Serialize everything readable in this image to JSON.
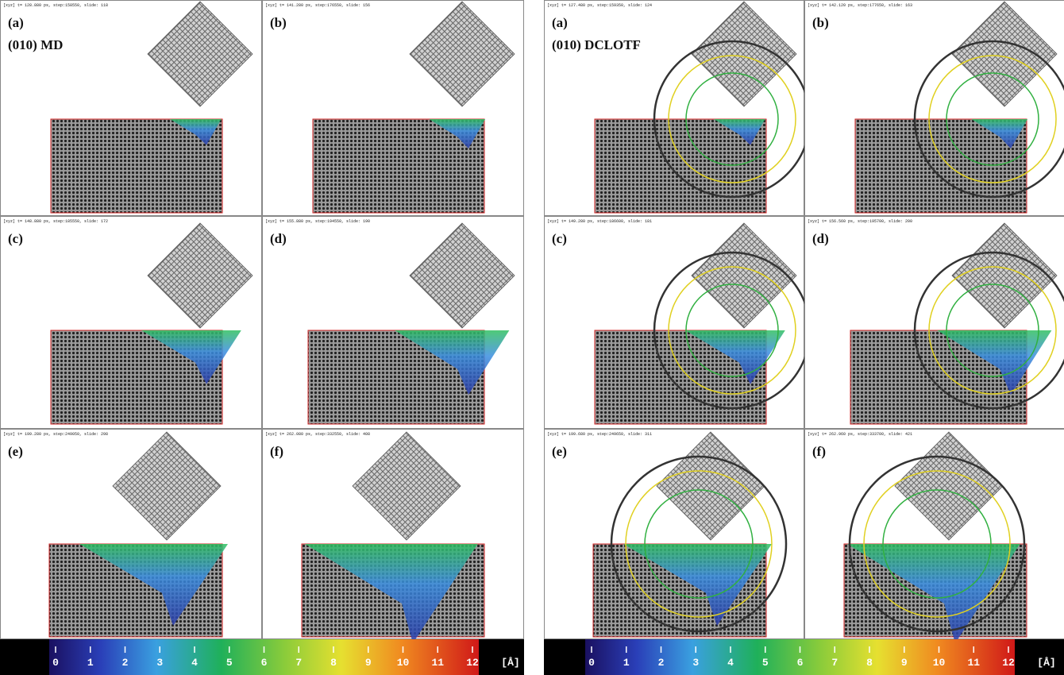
{
  "left": {
    "heading": "(010) MD",
    "panels": [
      {
        "label": "(a)",
        "info": "[xyz] t= 128.880 ps, step:158550, slide: 118"
      },
      {
        "label": "(b)",
        "info": "[xyz] t= 141.280 ps, step:176550, slide: 156"
      },
      {
        "label": "(c)",
        "info": "[xyz] t= 148.880 ps, step:185550, slide: 172"
      },
      {
        "label": "(d)",
        "info": "[xyz] t= 155.880 ps, step:194550, slide: 190"
      },
      {
        "label": "(e)",
        "info": "[xyz] t= 199.280 ps, step:249050, slide: 298"
      },
      {
        "label": "(f)",
        "info": "[xyz] t= 262.080 ps, step:332550, slide: 408"
      }
    ],
    "colorbar": {
      "ticks": [
        0,
        1,
        2,
        3,
        4,
        5,
        6,
        7,
        8,
        9,
        10,
        11,
        12
      ],
      "unit": "[Å]"
    }
  },
  "right": {
    "heading": "(010) DCLOTF",
    "panels": [
      {
        "label": "(a)",
        "info": "[xyz] t= 127.480 ps, step:159350, slide: 124"
      },
      {
        "label": "(b)",
        "info": "[xyz] t= 142.120 ps, step:177650, slide: 163"
      },
      {
        "label": "(c)",
        "info": "[xyz] t= 149.280 ps, step:186600, slide: 181"
      },
      {
        "label": "(d)",
        "info": "[xyz] t= 156.560 ps, step:195700, slide: 200"
      },
      {
        "label": "(e)",
        "info": "[xyz] t= 199.680 ps, step:249650, slide: 311"
      },
      {
        "label": "(f)",
        "info": "[xyz] t= 262.960 ps, step:333700, slide: 421"
      }
    ],
    "colorbar": {
      "ticks": [
        0,
        1,
        2,
        3,
        4,
        5,
        6,
        7,
        8,
        9,
        10,
        11,
        12
      ],
      "unit": "[Å]"
    }
  }
}
